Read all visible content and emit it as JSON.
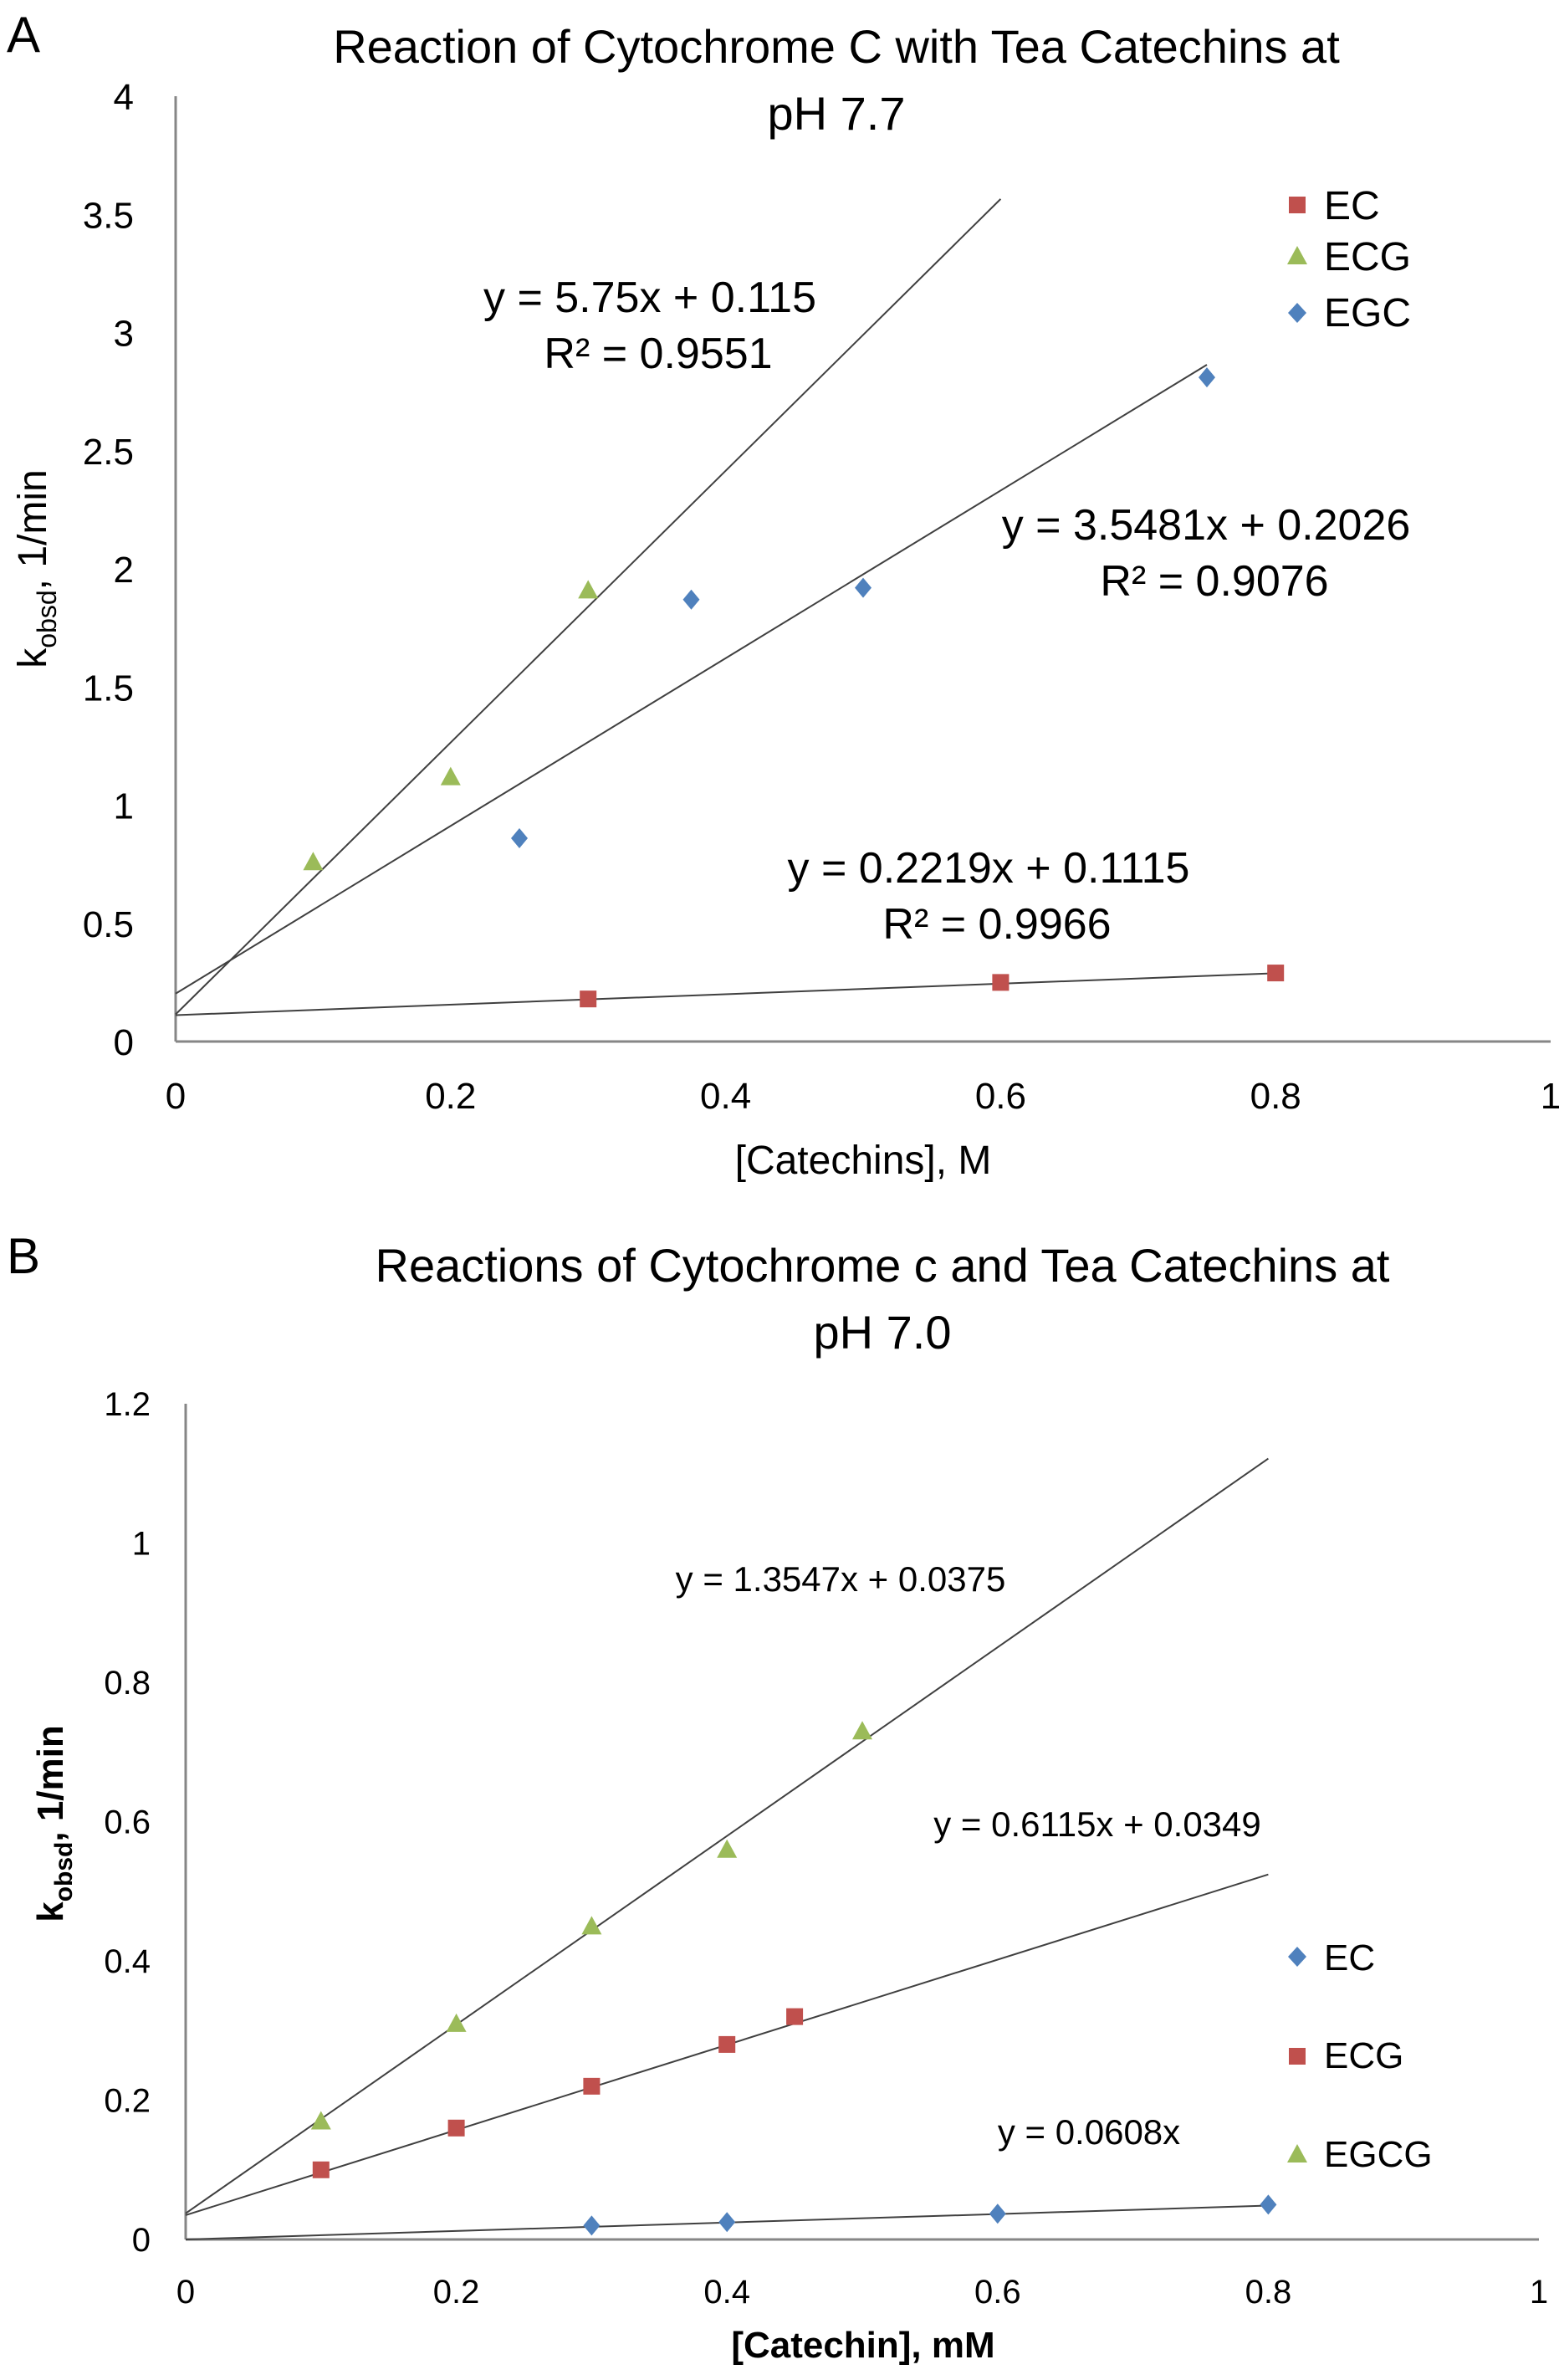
{
  "chart_data": [
    {
      "panel": "A",
      "type": "scatter",
      "title_lines": [
        "Reaction of Cytochrome C with Tea Catechins at",
        "pH 7.7"
      ],
      "xlabel": "[Catechins], M",
      "ylabel_main": "k",
      "ylabel_sub": "obsd",
      "ylabel_rest": ", 1/min",
      "xlim": [
        0,
        1
      ],
      "ylim": [
        0,
        4
      ],
      "xticks": [
        0,
        0.2,
        0.4,
        0.6,
        0.8,
        1
      ],
      "yticks": [
        0,
        0.5,
        1,
        1.5,
        2,
        2.5,
        3,
        3.5,
        4
      ],
      "xtick_labels": [
        "0",
        "0.2",
        "0.4",
        "0.6",
        "0.8",
        "1"
      ],
      "ytick_labels": [
        "0",
        "0.5",
        "1",
        "1.5",
        "2",
        "2.5",
        "3",
        "3.5",
        "4"
      ],
      "legend_position": "top-right",
      "series": [
        {
          "name": "EC",
          "marker": "square",
          "color": "#c0504d",
          "points": [
            [
              0.3,
              0.18
            ],
            [
              0.6,
              0.25
            ],
            [
              0.8,
              0.29
            ]
          ],
          "trend": {
            "slope": 0.2219,
            "intercept": 0.1115,
            "x_range": [
              0,
              0.8
            ]
          },
          "eq_lines": [
            "y = 0.2219x + 0.1115",
            "R² = 0.9966"
          ]
        },
        {
          "name": "ECG",
          "marker": "triangle",
          "color": "#9bbb59",
          "points": [
            [
              0.1,
              0.76
            ],
            [
              0.2,
              1.12
            ],
            [
              0.3,
              1.91
            ]
          ],
          "trend": {
            "slope": 5.75,
            "intercept": 0.115,
            "x_range": [
              0,
              0.6
            ]
          },
          "eq_lines": [
            "y = 5.75x + 0.115",
            "R² = 0.9551"
          ]
        },
        {
          "name": "EGC",
          "marker": "diamond",
          "color": "#4f81bd",
          "points": [
            [
              0.25,
              0.86
            ],
            [
              0.375,
              1.87
            ],
            [
              0.5,
              1.92
            ],
            [
              0.75,
              2.81
            ]
          ],
          "trend": {
            "slope": 3.5481,
            "intercept": 0.2026,
            "x_range": [
              0,
              0.75
            ]
          },
          "eq_lines": [
            "y = 3.5481x + 0.2026",
            "R² = 0.9076"
          ]
        }
      ]
    },
    {
      "panel": "B",
      "type": "scatter",
      "title_lines": [
        "Reactions of Cytochrome c and Tea Catechins at",
        "pH 7.0"
      ],
      "xlabel": "[Catechin], mM",
      "ylabel_main": "k",
      "ylabel_sub": "obsd",
      "ylabel_rest": ", 1/min",
      "xlim": [
        0,
        1
      ],
      "ylim": [
        0,
        1.2
      ],
      "xticks": [
        0,
        0.2,
        0.4,
        0.6,
        0.8,
        1
      ],
      "yticks": [
        0,
        0.2,
        0.4,
        0.6,
        0.8,
        1,
        1.2
      ],
      "xtick_labels": [
        "0",
        "0.2",
        "0.4",
        "0.6",
        "0.8",
        "1"
      ],
      "ytick_labels": [
        "0",
        "0.2",
        "0.4",
        "0.6",
        "0.8",
        "1",
        "1.2"
      ],
      "legend_position": "right",
      "series": [
        {
          "name": "EC",
          "marker": "diamond",
          "color": "#4f81bd",
          "points": [
            [
              0.3,
              0.02
            ],
            [
              0.4,
              0.025
            ],
            [
              0.6,
              0.037
            ],
            [
              0.8,
              0.05
            ]
          ],
          "trend": {
            "slope": 0.0608,
            "intercept": 0,
            "x_range": [
              0,
              0.8
            ]
          },
          "eq_lines": [
            "y = 0.0608x"
          ]
        },
        {
          "name": "ECG",
          "marker": "square",
          "color": "#c0504d",
          "points": [
            [
              0.1,
              0.1
            ],
            [
              0.2,
              0.16
            ],
            [
              0.3,
              0.22
            ],
            [
              0.4,
              0.28
            ],
            [
              0.45,
              0.32
            ]
          ],
          "trend": {
            "slope": 0.6115,
            "intercept": 0.0349,
            "x_range": [
              0,
              0.8
            ]
          },
          "eq_lines": [
            "y = 0.6115x  + 0.0349"
          ]
        },
        {
          "name": "EGCG",
          "marker": "triangle",
          "color": "#9bbb59",
          "points": [
            [
              0.1,
              0.17
            ],
            [
              0.2,
              0.31
            ],
            [
              0.3,
              0.45
            ],
            [
              0.4,
              0.56
            ],
            [
              0.5,
              0.73
            ]
          ],
          "trend": {
            "slope": 1.3547,
            "intercept": 0.0375,
            "x_range": [
              0,
              0.8
            ]
          },
          "eq_lines": [
            "y = 1.3547x  + 0.0375"
          ]
        }
      ]
    }
  ]
}
